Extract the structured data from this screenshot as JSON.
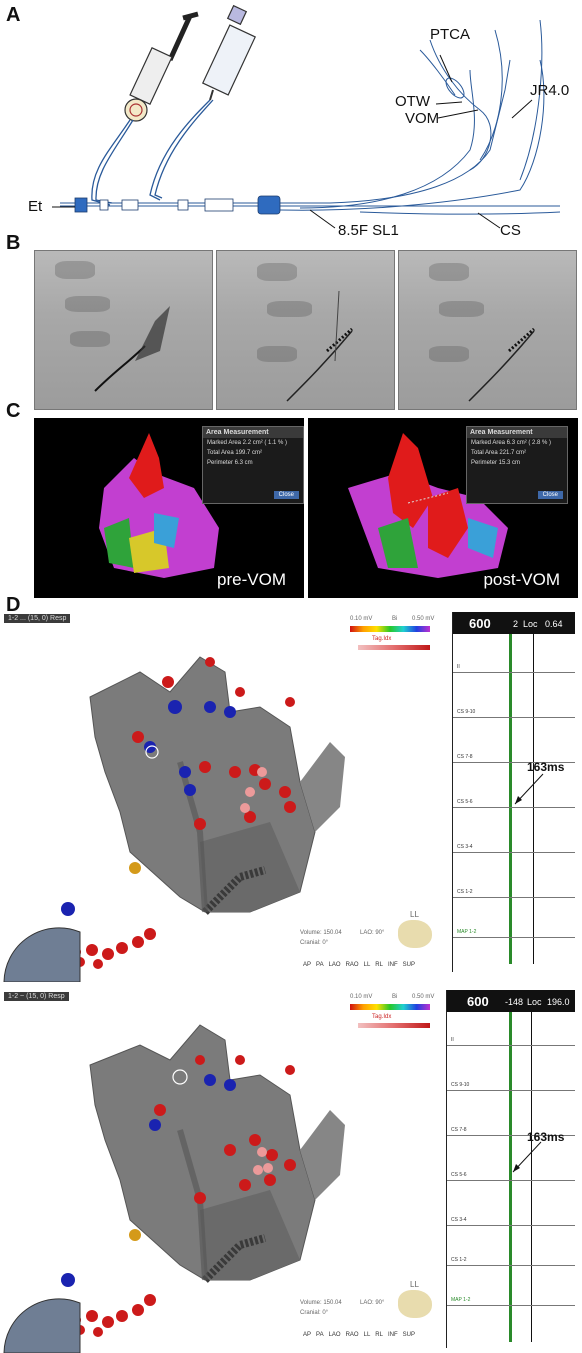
{
  "panel_a": {
    "letter": "A",
    "labels": {
      "ptca": "PTCA",
      "otw": "OTW",
      "vom": "VOM",
      "jr": "JR4.0",
      "et": "Et",
      "sl1": "8.5F SL1",
      "cs": "CS"
    }
  },
  "panel_b": {
    "letter": "B"
  },
  "panel_c": {
    "letter": "C",
    "left_label": "pre-VOM",
    "right_label": "post-VOM",
    "area_title": "Area Measurement",
    "left_area": {
      "marked": "Marked Area  2.2 cm² ( 1.1 % )",
      "total": "Total Area   199.7 cm²",
      "perimeter": "Perimeter    6.3 cm"
    },
    "right_area": {
      "marked": "Marked Area  6.3 cm² ( 2.8 % )",
      "total": "Total Area   221.7 cm²",
      "perimeter": "Perimeter    15.3 cm"
    },
    "close": "Close"
  },
  "panel_d": {
    "letter": "D",
    "top": {
      "map_title": "1-2 ...  (15, 0) Resp",
      "scale_min": "0.10 mV",
      "scale_mid": "Bi",
      "scale_max": "0.50 mV",
      "tag": "Tag.Idx",
      "cl": "600",
      "loc_num": "2",
      "loc": "Loc",
      "val": "0.64",
      "channels": [
        "II",
        "CS 9-10",
        "CS 7-8",
        "CS 5-6",
        "CS 3-4",
        "CS 1-2",
        "MAP 1-2"
      ],
      "ms": "163ms",
      "view": "LL",
      "volume": "Volume: 150.04",
      "lao": "LAO: 90°",
      "cranial": "Cranial: 0°",
      "views": [
        "AP",
        "PA",
        "LAO",
        "RAO",
        "LL",
        "RL",
        "INF",
        "SUP"
      ]
    },
    "bottom": {
      "map_title": "1-2 ~   (15, 0) Resp",
      "scale_min": "0.10 mV",
      "scale_mid": "Bi",
      "scale_max": "0.50 mV",
      "tag": "Tag.Idx",
      "cl": "600",
      "loc_num": "-148",
      "loc": "Loc",
      "val": "196.0",
      "channels": [
        "II",
        "CS 9-10",
        "CS 7-8",
        "CS 5-6",
        "CS 3-4",
        "CS 1-2",
        "MAP 1-2"
      ],
      "ms": "163ms",
      "view": "LL",
      "volume": "Volume: 150.04",
      "lao": "LAO: 90°",
      "cranial": "Cranial: 0°",
      "views": [
        "AP",
        "PA",
        "LAO",
        "RAO",
        "LL",
        "RL",
        "INF",
        "SUP"
      ]
    }
  }
}
